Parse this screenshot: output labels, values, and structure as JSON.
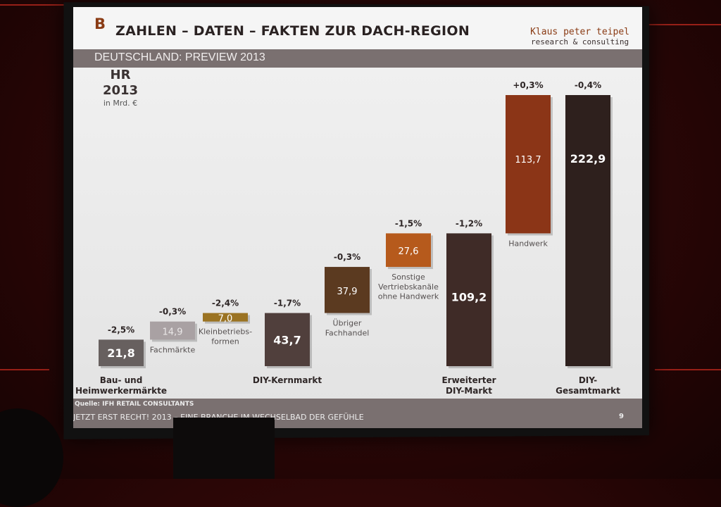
{
  "slide": {
    "logo_letter": "B",
    "title": "ZAHLEN – DATEN – FAKTEN ZUR DACH-REGION",
    "brand_name": "Klaus peter teipel",
    "brand_sub": "research & consulting",
    "subtitle": "DEUTSCHLAND: PREVIEW 2013",
    "hr_title": "HR\n2013",
    "hr_unit": "in Mrd. €",
    "source": "Quelle: IFH RETAIL CONSULTANTS",
    "footer": "JETZT ERST RECHT! 2013 – EINE BRANCHE IM WECHSELBAD DER GEFÜHLE",
    "page_number": "9"
  },
  "colors": {
    "slide_bg": "#ececec",
    "header_bar": "#7a7070",
    "accent": "#8a3b14",
    "room_red": "#c0281d"
  },
  "chart_data": {
    "type": "bar",
    "subtype": "waterfall",
    "unit": "Mrd. €",
    "bars": [
      {
        "value": 21.8,
        "label": "21,8",
        "change": "-2,5%",
        "category": "Bau- und\nHeimwerkermärkte",
        "color": "#67605f",
        "role": "subtotal"
      },
      {
        "value": 14.9,
        "label": "14,9",
        "change": "-0,3%",
        "category": "Fachmärkte",
        "color": "#a9a1a3",
        "role": "increment"
      },
      {
        "value": 7.0,
        "label": "7,0",
        "change": "-2,4%",
        "category": "Kleinbetriebs-\nformen",
        "color": "#9b7322",
        "role": "increment"
      },
      {
        "value": 43.7,
        "label": "43,7",
        "change": "-1,7%",
        "category": "DIY-Kernmarkt",
        "color": "#503f3c",
        "role": "subtotal"
      },
      {
        "value": 37.9,
        "label": "37,9",
        "change": "-0,3%",
        "category": "Übriger\nFachhandel",
        "color": "#5b3a20",
        "role": "increment"
      },
      {
        "value": 27.6,
        "label": "27,6",
        "change": "-1,5%",
        "category": "Sonstige\nVertriebskanäle\nohne Handwerk",
        "color": "#b65a1c",
        "role": "increment"
      },
      {
        "value": 109.2,
        "label": "109,2",
        "change": "-1,2%",
        "category": "Erweiterter\nDIY-Markt",
        "color": "#3f2b27",
        "role": "subtotal"
      },
      {
        "value": 113.7,
        "label": "113,7",
        "change": "+0,3%",
        "category": "Handwerk",
        "color": "#8b3517",
        "role": "increment"
      },
      {
        "value": 222.9,
        "label": "222,9",
        "change": "-0,4%",
        "category": "DIY-\nGesamtmarkt",
        "color": "#2e201d",
        "role": "subtotal"
      }
    ]
  }
}
